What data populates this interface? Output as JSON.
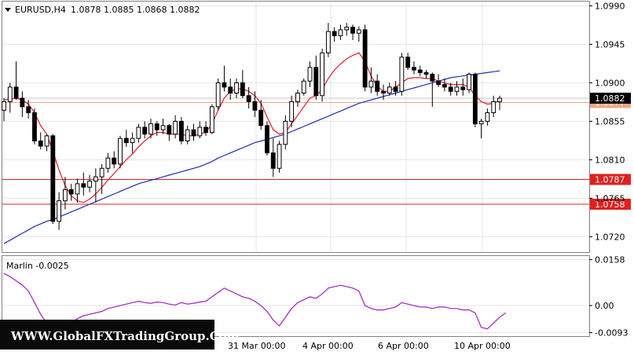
{
  "chart_data": [
    {
      "type": "candlestick",
      "title": "EURUSD,H4  1.0878 1.0885 1.0868 1.0882",
      "symbol": "EURUSD,H4",
      "ohlc_header": "1.0878 1.0885 1.0868 1.0882",
      "ylim": [
        1.0702,
        1.0995
      ],
      "y_ticks": [
        "1.0990",
        "1.0945",
        "1.0900",
        "1.0855",
        "1.0810",
        "1.0765",
        "1.0720"
      ],
      "x_ticks": [
        "31 Mar 00:00",
        "4 Apr 00:00",
        "6 Apr 00:00",
        "10 Apr 00:00"
      ],
      "current_price_label": "1.0882",
      "horizontal_levels": [
        {
          "value": 1.0877,
          "label": "1.0877",
          "color": "#f4a582",
          "style": "thin"
        },
        {
          "value": 1.0787,
          "label": "1.0787",
          "color": "#e02020",
          "style": "solid"
        },
        {
          "value": 1.0758,
          "label": "1.0758",
          "color": "#e02020",
          "style": "solid"
        }
      ],
      "candles": [
        [
          1.0868,
          1.0882,
          1.0855,
          1.0878
        ],
        [
          1.0878,
          1.09,
          1.0865,
          1.0895
        ],
        [
          1.0895,
          1.0925,
          1.088,
          1.0882
        ],
        [
          1.0882,
          1.089,
          1.086,
          1.0872
        ],
        [
          1.0872,
          1.088,
          1.0858,
          1.0865
        ],
        [
          1.0865,
          1.087,
          1.0828,
          1.0832
        ],
        [
          1.0832,
          1.0842,
          1.0822,
          1.0826
        ],
        [
          1.0826,
          1.084,
          1.082,
          1.0838
        ],
        [
          1.0838,
          1.084,
          1.0735,
          1.0738
        ],
        [
          1.0738,
          1.0772,
          1.0728,
          1.0762
        ],
        [
          1.0762,
          1.079,
          1.0752,
          1.0775
        ],
        [
          1.0775,
          1.0782,
          1.0762,
          1.077
        ],
        [
          1.077,
          1.0788,
          1.076,
          1.0782
        ],
        [
          1.0782,
          1.0795,
          1.0768,
          1.0778
        ],
        [
          1.0778,
          1.0792,
          1.0772,
          1.0785
        ],
        [
          1.0785,
          1.08,
          1.076,
          1.079
        ],
        [
          1.079,
          1.0805,
          1.077,
          1.08
        ],
        [
          1.08,
          1.0818,
          1.0795,
          1.0812
        ],
        [
          1.0812,
          1.082,
          1.08,
          1.0805
        ],
        [
          1.0805,
          1.0838,
          1.08,
          1.0835
        ],
        [
          1.0835,
          1.0845,
          1.0825,
          1.083
        ],
        [
          1.083,
          1.0842,
          1.0818,
          1.0835
        ],
        [
          1.0835,
          1.0852,
          1.083,
          1.0848
        ],
        [
          1.0848,
          1.0855,
          1.0835,
          1.084
        ],
        [
          1.084,
          1.0858,
          1.0835,
          1.0852
        ],
        [
          1.0852,
          1.0855,
          1.0838,
          1.0845
        ],
        [
          1.0845,
          1.0858,
          1.084,
          1.085
        ],
        [
          1.085,
          1.0852,
          1.0832,
          1.084
        ],
        [
          1.084,
          1.0862,
          1.0835,
          1.0855
        ],
        [
          1.0855,
          1.086,
          1.0828,
          1.0832
        ],
        [
          1.0832,
          1.085,
          1.0828,
          1.0845
        ],
        [
          1.0845,
          1.0852,
          1.0832,
          1.0838
        ],
        [
          1.0838,
          1.0855,
          1.0835,
          1.0848
        ],
        [
          1.0848,
          1.0855,
          1.0838,
          1.0842
        ],
        [
          1.0842,
          1.0875,
          1.084,
          1.0872
        ],
        [
          1.0872,
          1.0905,
          1.0868,
          1.09
        ],
        [
          1.09,
          1.092,
          1.089,
          1.0895
        ],
        [
          1.0895,
          1.0905,
          1.088,
          1.0888
        ],
        [
          1.0888,
          1.0905,
          1.0882,
          1.09
        ],
        [
          1.09,
          1.0915,
          1.0882,
          1.0885
        ],
        [
          1.0885,
          1.0895,
          1.087,
          1.0878
        ],
        [
          1.0878,
          1.089,
          1.086,
          1.0868
        ],
        [
          1.0868,
          1.088,
          1.0845,
          1.085
        ],
        [
          1.085,
          1.0855,
          1.0815,
          1.0818
        ],
        [
          1.0818,
          1.0835,
          1.079,
          1.08
        ],
        [
          1.08,
          1.0832,
          1.0795,
          1.0828
        ],
        [
          1.0828,
          1.0862,
          1.0822,
          1.0855
        ],
        [
          1.0855,
          1.0885,
          1.0848,
          1.0878
        ],
        [
          1.0878,
          1.0892,
          1.0872,
          1.0888
        ],
        [
          1.0888,
          1.0905,
          1.0885,
          1.0902
        ],
        [
          1.0902,
          1.0925,
          1.0895,
          1.0918
        ],
        [
          1.0918,
          1.0932,
          1.088,
          1.0885
        ],
        [
          1.0885,
          1.094,
          1.0878,
          1.0935
        ],
        [
          1.0935,
          1.097,
          1.093,
          1.096
        ],
        [
          1.096,
          1.0965,
          1.0948,
          1.0955
        ],
        [
          1.0955,
          1.0968,
          1.095,
          1.0962
        ],
        [
          1.0962,
          1.097,
          1.0955,
          1.0965
        ],
        [
          1.0965,
          1.0968,
          1.095,
          1.0958
        ],
        [
          1.0958,
          1.0966,
          1.0948,
          1.0962
        ],
        [
          1.0962,
          1.0968,
          1.089,
          1.0895
        ],
        [
          1.0895,
          1.0918,
          1.0888,
          1.0902
        ],
        [
          1.0902,
          1.091,
          1.0885,
          1.089
        ],
        [
          1.089,
          1.0898,
          1.088,
          1.0888
        ],
        [
          1.0888,
          1.09,
          1.0885,
          1.0895
        ],
        [
          1.0895,
          1.0902,
          1.0885,
          1.089
        ],
        [
          1.089,
          1.0935,
          1.0885,
          1.093
        ],
        [
          1.093,
          1.0935,
          1.0915,
          1.0918
        ],
        [
          1.0918,
          1.0925,
          1.091,
          1.0915
        ],
        [
          1.0915,
          1.092,
          1.0908,
          1.0912
        ],
        [
          1.0912,
          1.0915,
          1.0905,
          1.091
        ],
        [
          1.091,
          1.0912,
          1.0872,
          1.0902
        ],
        [
          1.0902,
          1.091,
          1.0895,
          1.0898
        ],
        [
          1.0898,
          1.0905,
          1.089,
          1.0895
        ],
        [
          1.0895,
          1.09,
          1.0885,
          1.089
        ],
        [
          1.089,
          1.0902,
          1.0885,
          1.0895
        ],
        [
          1.0895,
          1.0905,
          1.0885,
          1.0892
        ],
        [
          1.0892,
          1.0912,
          1.0888,
          1.091
        ],
        [
          1.091,
          1.0912,
          1.0848,
          1.0852
        ],
        [
          1.0852,
          1.0858,
          1.0835,
          1.0855
        ],
        [
          1.0855,
          1.087,
          1.085,
          1.0865
        ],
        [
          1.0865,
          1.0885,
          1.086,
          1.0878
        ],
        [
          1.0878,
          1.0885,
          1.0868,
          1.0882
        ]
      ],
      "series": [
        {
          "kind": "moving-average-fast",
          "color": "#e0202a",
          "values": [
            1.088,
            1.0881,
            1.0882,
            1.088,
            1.0875,
            1.0865,
            1.085,
            1.084,
            1.082,
            1.0798,
            1.078,
            1.0768,
            1.0762,
            1.076,
            1.0764,
            1.077,
            1.0778,
            1.0786,
            1.0794,
            1.0802,
            1.081,
            1.0817,
            1.0825,
            1.0832,
            1.0838,
            1.0842,
            1.0842,
            1.084,
            1.084,
            1.084,
            1.0838,
            1.0838,
            1.084,
            1.0842,
            1.0852,
            1.0868,
            1.0882,
            1.089,
            1.0893,
            1.0893,
            1.089,
            1.0885,
            1.0876,
            1.086,
            1.0845,
            1.084,
            1.0842,
            1.0852,
            1.0862,
            1.0872,
            1.0882,
            1.0885,
            1.0892,
            1.0905,
            1.0915,
            1.0922,
            1.0928,
            1.0932,
            1.0935,
            1.0925,
            1.0908,
            1.0896,
            1.089,
            1.089,
            1.0895,
            1.09,
            1.0905,
            1.0906,
            1.0906,
            1.0905,
            1.0905,
            1.0902,
            1.09,
            1.0898,
            1.0898,
            1.0898,
            1.0895,
            1.0885,
            1.0878,
            1.0875,
            1.0876,
            1.088
          ]
        },
        {
          "kind": "moving-average-slow",
          "color": "#1a2fb0",
          "values": [
            1.0712,
            1.0716,
            1.072,
            1.0724,
            1.0728,
            1.0732,
            1.0735,
            1.0738,
            1.074,
            1.0743,
            1.0746,
            1.0749,
            1.0752,
            1.0755,
            1.0758,
            1.0761,
            1.0764,
            1.0767,
            1.077,
            1.0773,
            1.0776,
            1.0779,
            1.0782,
            1.0784,
            1.0786,
            1.0788,
            1.079,
            1.0792,
            1.0794,
            1.0796,
            1.0798,
            1.08,
            1.0802,
            1.0805,
            1.0808,
            1.0812,
            1.0815,
            1.0818,
            1.0821,
            1.0824,
            1.0827,
            1.083,
            1.0832,
            1.0834,
            1.0836,
            1.0838,
            1.084,
            1.0843,
            1.0846,
            1.0849,
            1.0852,
            1.0855,
            1.0858,
            1.0861,
            1.0864,
            1.0867,
            1.087,
            1.0873,
            1.0876,
            1.0878,
            1.088,
            1.0882,
            1.0884,
            1.0886,
            1.0888,
            1.089,
            1.0892,
            1.0894,
            1.0896,
            1.0898,
            1.09,
            1.0902,
            1.0904,
            1.0906,
            1.0907,
            1.0908,
            1.0909,
            1.091,
            1.0911,
            1.0912,
            1.0913,
            1.0914
          ]
        }
      ]
    },
    {
      "type": "line",
      "title": "Marlin -0.0025",
      "name": "Marlin",
      "current_value": "-0.0025",
      "ylim": [
        -0.0105,
        0.017
      ],
      "y_ticks": [
        "0.0158",
        "0.00",
        "-0.0093"
      ],
      "series": [
        {
          "color": "#a020c0",
          "values": [
            0.011,
            0.01,
            0.0085,
            0.007,
            0.005,
            0.001,
            -0.003,
            -0.006,
            -0.008,
            -0.0085,
            -0.0075,
            -0.006,
            -0.0045,
            -0.0035,
            -0.003,
            -0.0025,
            -0.002,
            -0.001,
            -0.0005,
            0.0,
            0.0005,
            0.001,
            0.0015,
            0.001,
            0.0008,
            0.0012,
            0.001,
            0.0005,
            0.0002,
            0.001,
            0.0005,
            0.0008,
            0.0012,
            0.0015,
            0.003,
            0.0045,
            0.006,
            0.005,
            0.004,
            0.003,
            0.0025,
            0.0015,
            0.0,
            -0.002,
            -0.005,
            -0.007,
            -0.004,
            -0.001,
            0.001,
            0.002,
            0.003,
            0.0025,
            0.004,
            0.006,
            0.0065,
            0.007,
            0.0065,
            0.006,
            0.005,
            0.0,
            -0.001,
            -0.0015,
            -0.0015,
            -0.001,
            -0.0005,
            0.001,
            0.0005,
            0.0,
            -0.0005,
            -0.0005,
            -0.001,
            -0.0005,
            -0.0005,
            -0.001,
            -0.001,
            -0.0015,
            -0.0015,
            -0.0025,
            -0.0075,
            -0.008,
            -0.006,
            -0.004,
            -0.0025
          ]
        }
      ]
    }
  ],
  "watermark": "WWW.GlobalFXTradingGroup.Com",
  "colors": {
    "background": "#ffffff",
    "grid": "#e6e6e6",
    "frame": "#808080",
    "bull_candle": "#ffffff",
    "bear_candle": "#000000"
  }
}
